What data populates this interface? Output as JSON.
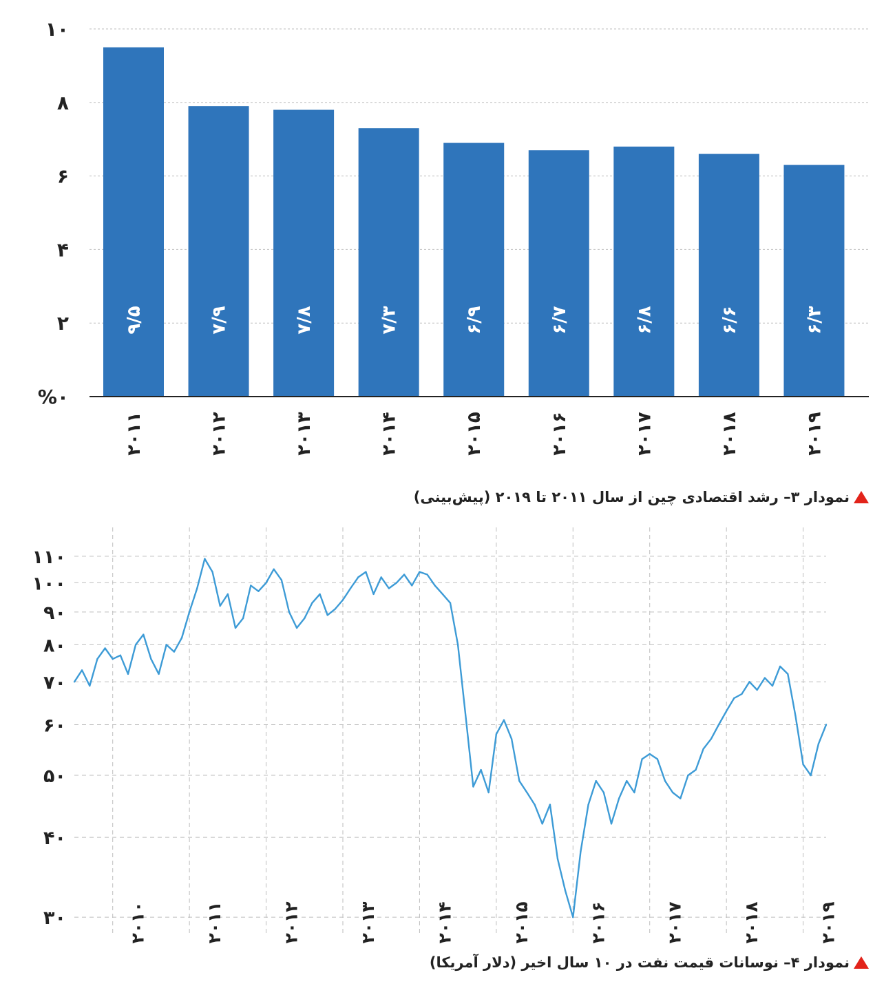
{
  "colors": {
    "bar": "#2f75bb",
    "line": "#3d9bd6",
    "grid": "#bdbdbd",
    "axis": "#222222",
    "bar_label": "#ffffff",
    "marker": "#e2231a"
  },
  "chart1_caption": "نمودار ۳– رشد اقتصادی چین از سال ۲۰۱۱ تا ۲۰۱۹ (پیش‌بینی)",
  "chart2_caption": "نمودار ۴– نوسانات قیمت نفت در ۱۰ سال اخیر (دلار آمریکا)",
  "chart_data": [
    {
      "type": "bar",
      "title": "",
      "categories": [
        "۲۰۱۱",
        "۲۰۱۲",
        "۲۰۱۳",
        "۲۰۱۴",
        "۲۰۱۵",
        "۲۰۱۶",
        "۲۰۱۷",
        "۲۰۱۸",
        "۲۰۱۹"
      ],
      "values": [
        9.5,
        7.9,
        7.8,
        7.3,
        6.9,
        6.7,
        6.8,
        6.6,
        6.3
      ],
      "data_labels": [
        "۹/۵",
        "۷/۹",
        "۷/۸",
        "۷/۳",
        "۶/۹",
        "۶/۷",
        "۶/۸",
        "۶/۶",
        "۶/۳"
      ],
      "yticks": [
        0,
        2,
        4,
        6,
        8,
        10
      ],
      "ytick_labels": [
        "%۰",
        "۲",
        "۴",
        "۶",
        "۸",
        "۱۰"
      ],
      "ylim": [
        0,
        10
      ],
      "grid": true
    },
    {
      "type": "line",
      "title": "",
      "series": [
        {
          "x": [
            2009.5,
            2009.6,
            2009.7,
            2009.8,
            2009.9,
            2010.0,
            2010.1,
            2010.2,
            2010.3,
            2010.4,
            2010.5,
            2010.6,
            2010.7,
            2010.8,
            2010.9,
            2011.0,
            2011.1,
            2011.2,
            2011.3,
            2011.4,
            2011.5,
            2011.6,
            2011.7,
            2011.8,
            2011.9,
            2012.0,
            2012.1,
            2012.2,
            2012.3,
            2012.4,
            2012.5,
            2012.6,
            2012.7,
            2012.8,
            2012.9,
            2013.0,
            2013.1,
            2013.2,
            2013.3,
            2013.4,
            2013.5,
            2013.6,
            2013.7,
            2013.8,
            2013.9,
            2014.0,
            2014.1,
            2014.2,
            2014.3,
            2014.4,
            2014.5,
            2014.6,
            2014.7,
            2014.8,
            2014.9,
            2015.0,
            2015.1,
            2015.2,
            2015.3,
            2015.4,
            2015.5,
            2015.6,
            2015.7,
            2015.8,
            2015.9,
            2016.0,
            2016.1,
            2016.2,
            2016.3,
            2016.4,
            2016.5,
            2016.6,
            2016.7,
            2016.8,
            2016.9,
            2017.0,
            2017.1,
            2017.2,
            2017.3,
            2017.4,
            2017.5,
            2017.6,
            2017.7,
            2017.8,
            2017.9,
            2018.0,
            2018.1,
            2018.2,
            2018.3,
            2018.4,
            2018.5,
            2018.6,
            2018.7,
            2018.8,
            2018.9,
            2019.0,
            2019.1,
            2019.2,
            2019.3
          ],
          "y": [
            70,
            73,
            69,
            76,
            79,
            76,
            77,
            72,
            80,
            83,
            76,
            72,
            80,
            78,
            82,
            90,
            98,
            109,
            104,
            92,
            96,
            85,
            88,
            99,
            97,
            100,
            105,
            101,
            90,
            85,
            88,
            93,
            96,
            89,
            91,
            94,
            98,
            102,
            104,
            96,
            102,
            98,
            100,
            103,
            99,
            104,
            103,
            99,
            96,
            93,
            80,
            62,
            48,
            51,
            47,
            58,
            61,
            57,
            49,
            47,
            45,
            42,
            45,
            37,
            33,
            30,
            38,
            45,
            49,
            47,
            42,
            46,
            49,
            47,
            53,
            54,
            53,
            49,
            47,
            46,
            50,
            51,
            55,
            57,
            60,
            63,
            66,
            67,
            70,
            68,
            71,
            69,
            74,
            72,
            62,
            52,
            50,
            56,
            60
          ]
        }
      ],
      "xticks": [
        2010,
        2011,
        2012,
        2013,
        2014,
        2015,
        2016,
        2017,
        2018,
        2019
      ],
      "xtick_labels": [
        "۲۰۱۰",
        "۲۰۱۱",
        "۲۰۱۲",
        "۲۰۱۳",
        "۲۰۱۴",
        "۲۰۱۵",
        "۲۰۱۶",
        "۲۰۱۷",
        "۲۰۱۸",
        "۲۰۱۹"
      ],
      "yticks": [
        30,
        40,
        50,
        60,
        70,
        80,
        90,
        100,
        110
      ],
      "ytick_labels": [
        "۳۰",
        "۴۰",
        "۵۰",
        "۶۰",
        "۷۰",
        "۸۰",
        "۹۰",
        "۱۰۰",
        "۱۱۰"
      ],
      "yscale": "log",
      "ylim": [
        28,
        115
      ],
      "xlim": [
        2009.5,
        2019.3
      ],
      "grid": true
    }
  ]
}
